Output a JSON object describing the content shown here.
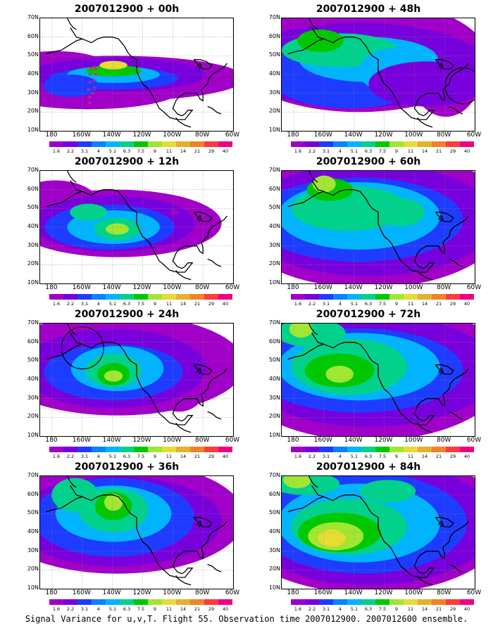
{
  "footer": "Signal Variance for u,v,T. Flight 55. Observation time 2007012900. 2007012600 ensemble.",
  "lat_ticks": [
    "70N",
    "60N",
    "50N",
    "40N",
    "30N",
    "20N",
    "10N"
  ],
  "lon_ticks": [
    "180",
    "160W",
    "140W",
    "120W",
    "100W",
    "80W",
    "60W"
  ],
  "colorbar": {
    "labels": [
      "1.6",
      "2.2",
      "3.1",
      "4",
      "5.1",
      "6.3",
      "7.5",
      "9",
      "11",
      "14",
      "21",
      "29",
      "40"
    ],
    "colors": [
      "#a000c8",
      "#7800dc",
      "#1e3cff",
      "#0a82ff",
      "#00b4ff",
      "#00d28c",
      "#00c800",
      "#a0e632",
      "#e6dc32",
      "#e6af2d",
      "#f08228",
      "#fa3c3c",
      "#f00082"
    ]
  },
  "panels": [
    {
      "title": "2007012900 + 00h",
      "blobs": [
        [
          40,
          38,
          55,
          8,
          "#a000c8"
        ],
        [
          25,
          32,
          40,
          7,
          "#a000c8"
        ],
        [
          8,
          42,
          25,
          7,
          "#a000c8"
        ],
        [
          40,
          40,
          38,
          6,
          "#7800dc"
        ],
        [
          38,
          38,
          28,
          4,
          "#1e3cff"
        ],
        [
          38,
          40,
          20,
          3,
          "#00b4ff"
        ],
        [
          38,
          42,
          12,
          2,
          "#00c800"
        ],
        [
          38,
          45,
          6,
          1.5,
          "#e6dc32"
        ],
        [
          16,
          34,
          12,
          4,
          "#1e3cff"
        ],
        [
          92,
          40,
          4,
          2,
          "#a000c8"
        ]
      ],
      "track": true,
      "circle": null
    },
    {
      "title": "2007012900 + 48h",
      "blobs": [
        [
          40,
          50,
          55,
          20,
          "#a000c8"
        ],
        [
          85,
          40,
          15,
          15,
          "#a000c8"
        ],
        [
          40,
          45,
          55,
          15,
          "#7800dc"
        ],
        [
          35,
          40,
          35,
          12,
          "#1e3cff"
        ],
        [
          45,
          48,
          30,
          8,
          "#00b4ff"
        ],
        [
          30,
          53,
          25,
          6,
          "#00d28c"
        ],
        [
          20,
          58,
          10,
          4,
          "#00c800"
        ],
        [
          58,
          42,
          15,
          8,
          "#00b4ff"
        ],
        [
          75,
          35,
          25,
          8,
          "#7800dc"
        ]
      ],
      "track": false,
      "circle": [
        94,
        34,
        6
      ]
    },
    {
      "title": "2007012900 + 12h",
      "blobs": [
        [
          40,
          42,
          45,
          12,
          "#a000c8"
        ],
        [
          8,
          50,
          20,
          10,
          "#a000c8"
        ],
        [
          38,
          42,
          35,
          10,
          "#7800dc"
        ],
        [
          36,
          40,
          28,
          8,
          "#1e3cff"
        ],
        [
          38,
          40,
          20,
          6,
          "#00b4ff"
        ],
        [
          40,
          39,
          10,
          4,
          "#00d28c"
        ],
        [
          40,
          39,
          5,
          2,
          "#a0e632"
        ],
        [
          25,
          48,
          8,
          3,
          "#00d28c"
        ],
        [
          70,
          48,
          2,
          1,
          "#a000c8"
        ]
      ],
      "track": false,
      "circle": null
    },
    {
      "title": "2007012900 + 60h",
      "blobs": [
        [
          45,
          45,
          60,
          25,
          "#a000c8"
        ],
        [
          45,
          44,
          55,
          20,
          "#7800dc"
        ],
        [
          40,
          44,
          45,
          15,
          "#1e3cff"
        ],
        [
          40,
          46,
          35,
          12,
          "#00b4ff"
        ],
        [
          35,
          50,
          25,
          8,
          "#00d28c"
        ],
        [
          25,
          60,
          10,
          4,
          "#00c800"
        ],
        [
          22,
          63,
          5,
          3,
          "#a0e632"
        ],
        [
          62,
          48,
          10,
          5,
          "#00d28c"
        ]
      ],
      "track": false,
      "circle": null
    },
    {
      "title": "2007012900 + 24h",
      "blobs": [
        [
          40,
          48,
          55,
          18,
          "#a000c8"
        ],
        [
          72,
          38,
          12,
          10,
          "#a000c8"
        ],
        [
          38,
          46,
          40,
          14,
          "#7800dc"
        ],
        [
          38,
          44,
          30,
          10,
          "#1e3cff"
        ],
        [
          40,
          46,
          20,
          8,
          "#00b4ff"
        ],
        [
          38,
          45,
          12,
          6,
          "#00d28c"
        ],
        [
          38,
          43,
          7,
          4,
          "#00c800"
        ],
        [
          38,
          42,
          4,
          2,
          "#a0e632"
        ]
      ],
      "track": false,
      "circle": [
        22,
        57,
        7
      ]
    },
    {
      "title": "2007012900 + 72h",
      "blobs": [
        [
          45,
          45,
          60,
          25,
          "#a000c8"
        ],
        [
          45,
          45,
          55,
          20,
          "#7800dc"
        ],
        [
          40,
          45,
          45,
          15,
          "#1e3cff"
        ],
        [
          40,
          47,
          35,
          12,
          "#00b4ff"
        ],
        [
          35,
          47,
          25,
          10,
          "#00d28c"
        ],
        [
          30,
          45,
          15,
          6,
          "#00c800"
        ],
        [
          30,
          43,
          6,
          3,
          "#a0e632"
        ],
        [
          15,
          65,
          15,
          5,
          "#00d28c"
        ],
        [
          10,
          67,
          5,
          3,
          "#a0e632"
        ]
      ],
      "track": false,
      "circle": null
    },
    {
      "title": "2007012900 + 36h",
      "blobs": [
        [
          40,
          48,
          55,
          20,
          "#a000c8"
        ],
        [
          40,
          46,
          45,
          16,
          "#7800dc"
        ],
        [
          38,
          48,
          35,
          14,
          "#1e3cff"
        ],
        [
          38,
          50,
          25,
          10,
          "#00b4ff"
        ],
        [
          38,
          52,
          15,
          8,
          "#00d28c"
        ],
        [
          38,
          54,
          8,
          5,
          "#00c800"
        ],
        [
          38,
          56,
          4,
          3,
          "#a0e632"
        ],
        [
          18,
          60,
          10,
          6,
          "#00d28c"
        ]
      ],
      "track": false,
      "circle": null
    },
    {
      "title": "2007012900 + 84h",
      "blobs": [
        [
          45,
          45,
          60,
          25,
          "#a000c8"
        ],
        [
          45,
          45,
          55,
          22,
          "#7800dc"
        ],
        [
          42,
          45,
          45,
          18,
          "#1e3cff"
        ],
        [
          40,
          45,
          35,
          14,
          "#00b4ff"
        ],
        [
          35,
          43,
          25,
          10,
          "#00d28c"
        ],
        [
          30,
          40,
          18,
          7,
          "#00c800"
        ],
        [
          28,
          38,
          12,
          5,
          "#a0e632"
        ],
        [
          26,
          37,
          6,
          3,
          "#e6dc32"
        ],
        [
          12,
          66,
          15,
          4,
          "#00d28c"
        ],
        [
          8,
          68,
          6,
          3,
          "#a0e632"
        ],
        [
          55,
          62,
          12,
          4,
          "#00d28c"
        ]
      ],
      "track": false,
      "circle": null
    }
  ]
}
